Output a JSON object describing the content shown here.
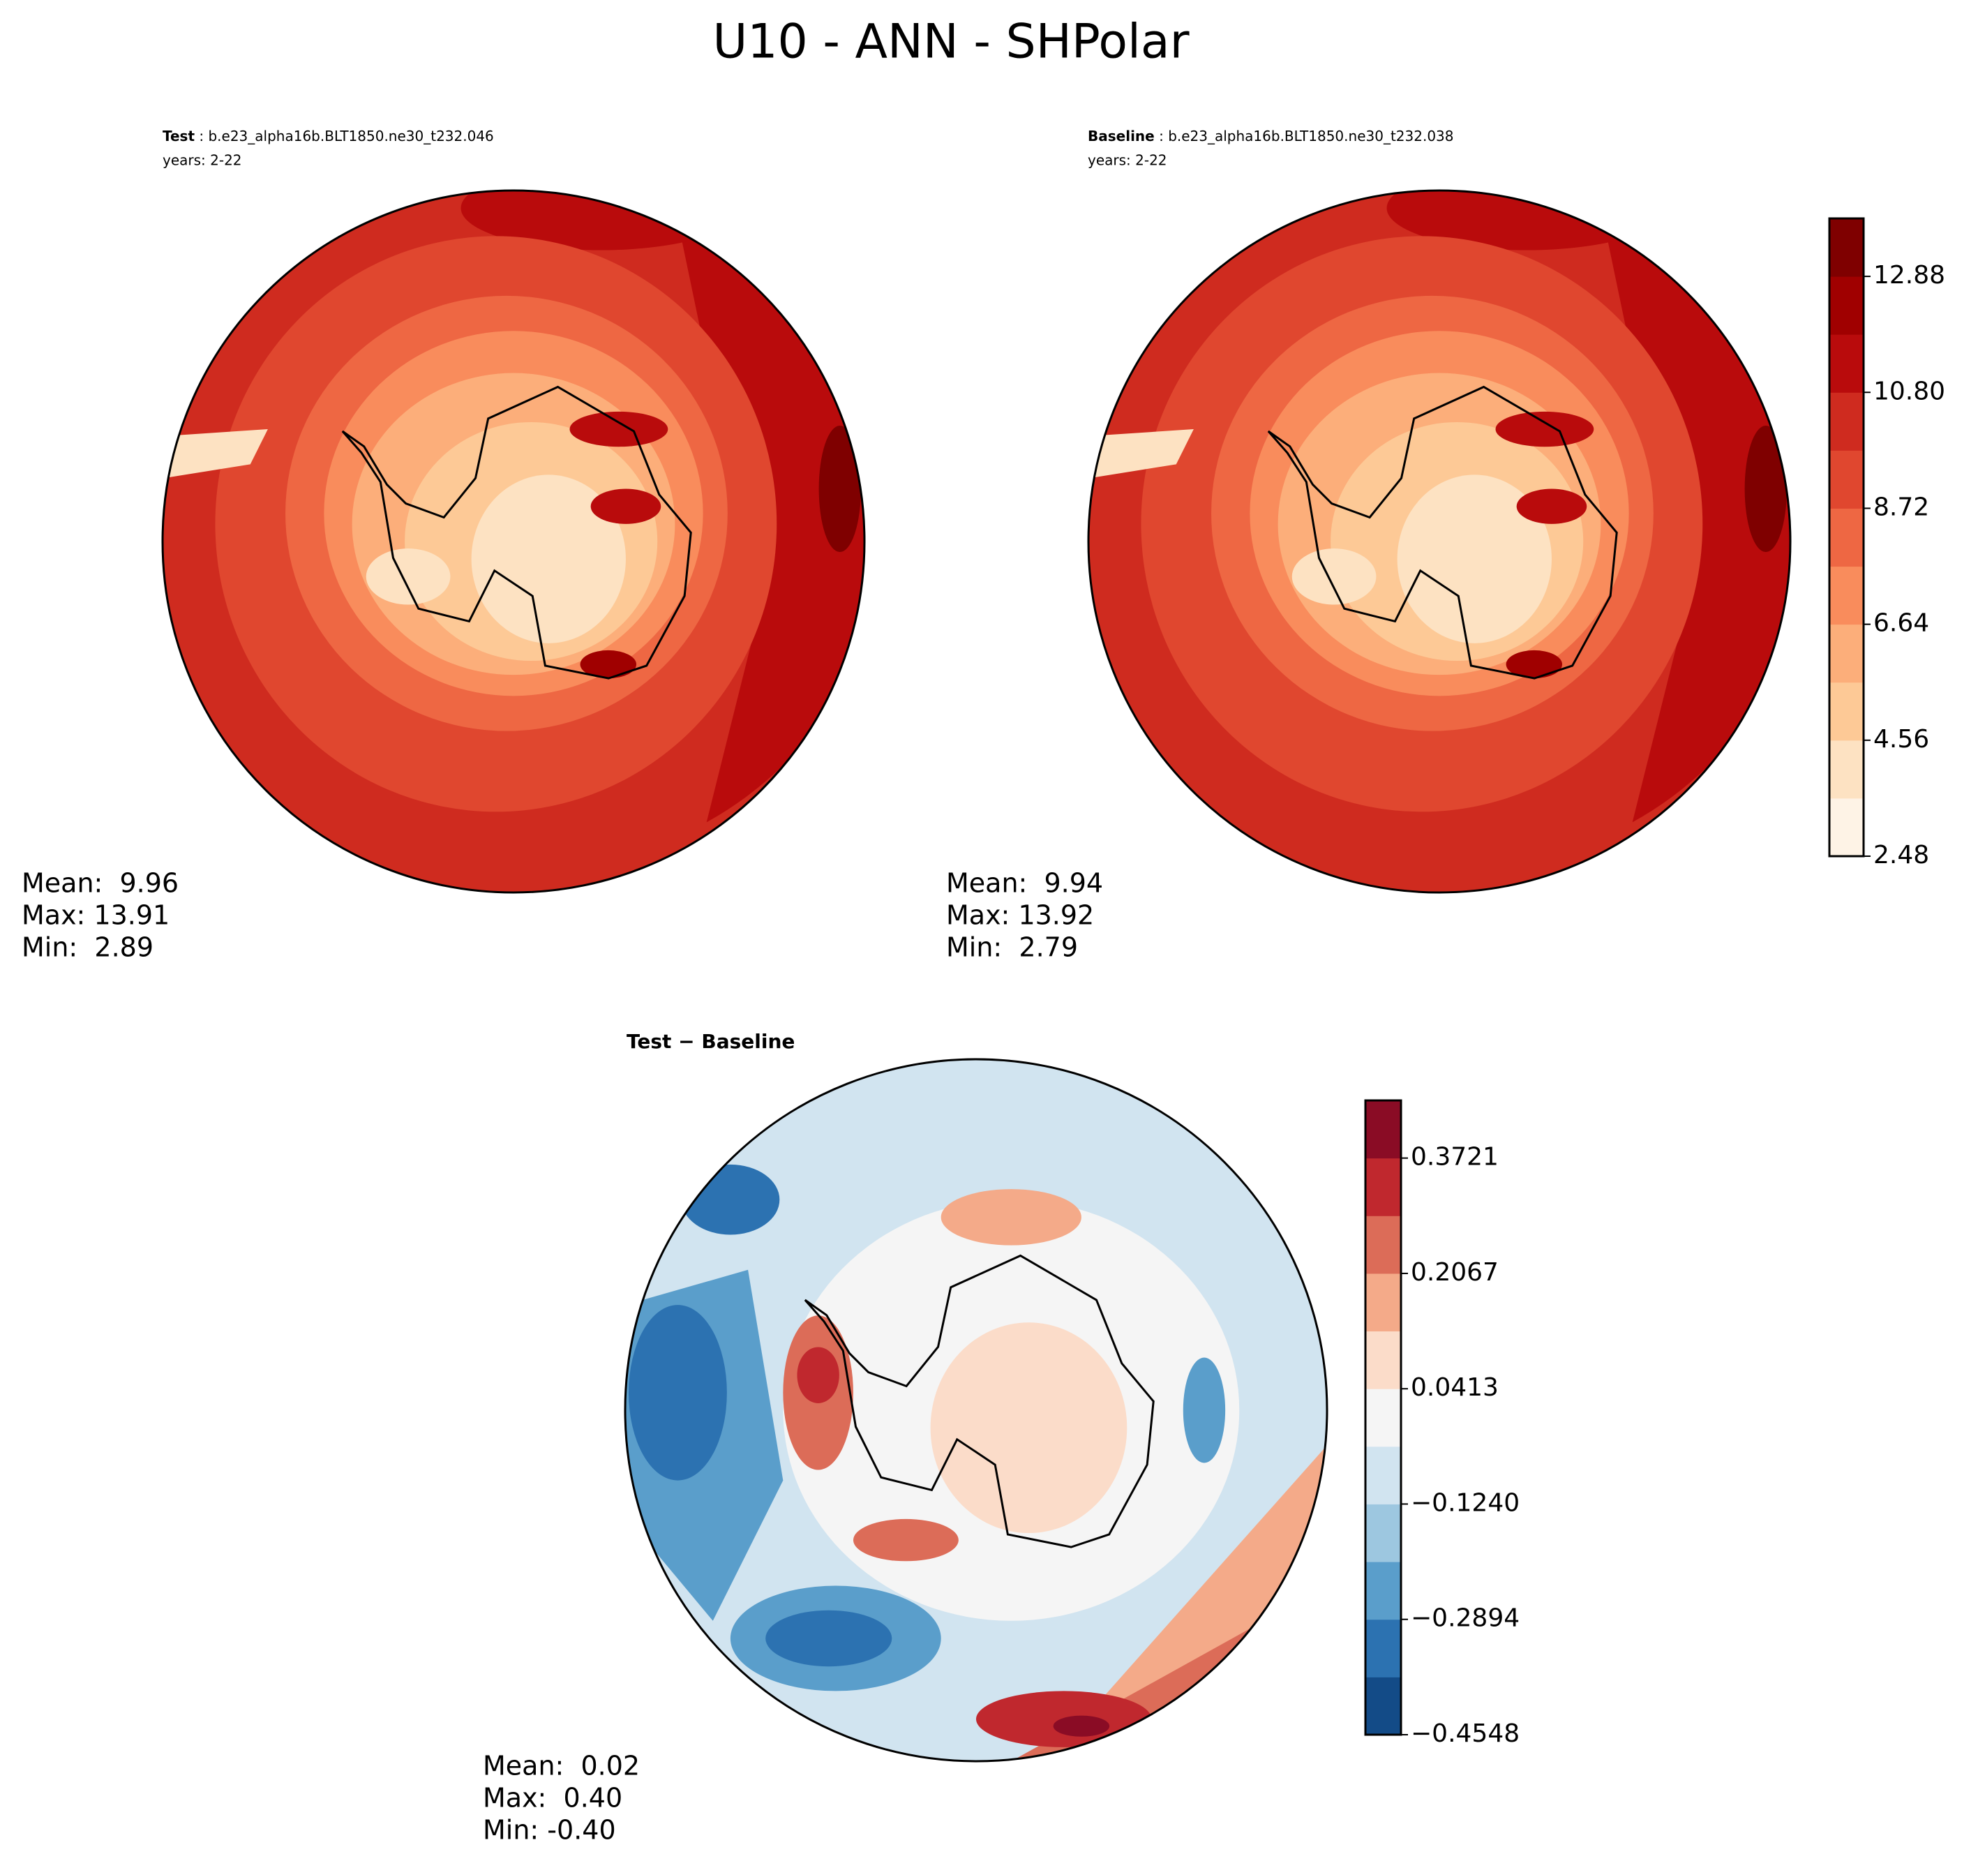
{
  "title": "U10 - ANN - SHPolar",
  "panels": [
    {
      "label": "Test",
      "case": " : b.e23_alpha16b.BLT1850.ne30_t232.046",
      "years": "years: 2-22",
      "stats": [
        "Mean:  9.96",
        "Max: 13.91",
        "Min:  2.89"
      ]
    },
    {
      "label": "Baseline",
      "case": " : b.e23_alpha16b.BLT1850.ne30_t232.038",
      "years": "years: 2-22",
      "stats": [
        "Mean:  9.94",
        "Max: 13.92",
        "Min:  2.79"
      ]
    },
    {
      "title": "Test − Baseline",
      "stats": [
        "Mean:  0.02",
        "Max:  0.40",
        "Min: -0.40"
      ]
    }
  ],
  "colorbars": [
    {
      "lim": [
        2.48,
        13.92
      ],
      "ticks": [
        2.48,
        4.56,
        6.64,
        8.72,
        {
          "value": 10.8,
          "label": "10.80"
        },
        12.88
      ],
      "colors": [
        "#fef3e6",
        "#fde2c2",
        "#fdc996",
        "#fcae7a",
        "#f98c5c",
        "#ee6743",
        "#e0472f",
        "#cf2b1f",
        "#b90b0c",
        "#a00000",
        "#7f0000"
      ]
    },
    {
      "lim": [
        -0.4548,
        0.4548
      ],
      "ticks": [
        {
          "value": -0.4548,
          "label": "−0.4548"
        },
        {
          "value": -0.2894,
          "label": "−0.2894"
        },
        {
          "value": -0.124,
          "label": "−0.1240"
        },
        0.0413,
        0.2067,
        0.3721
      ],
      "colors": [
        "#134b87",
        "#2c72b1",
        "#5a9ecb",
        "#9dc7e0",
        "#d1e4f0",
        "#f5f5f5",
        "#fbdcc9",
        "#f4aa89",
        "#dc6c58",
        "#c0282e",
        "#8a0c25"
      ]
    }
  ]
}
